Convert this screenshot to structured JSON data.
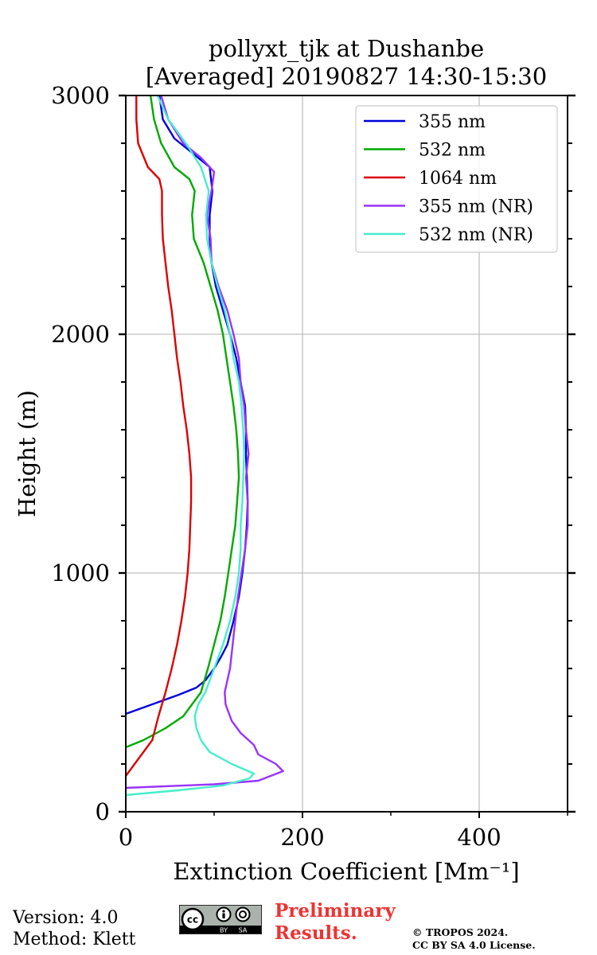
{
  "chart_data": {
    "type": "line",
    "title": "pollyxt_tjk at Dushanbe",
    "subtitle": "[Averaged] 20190827 14:30-15:30",
    "xlabel": "Extinction Coefficient [Mm⁻¹]",
    "ylabel": "Height (m)",
    "xlim": [
      0,
      500
    ],
    "ylim": [
      0,
      3000
    ],
    "xticks": [
      0,
      200,
      400
    ],
    "yticks": [
      0,
      1000,
      2000,
      3000
    ],
    "grid": true,
    "legend_position": "top-right",
    "series": [
      {
        "name": "355 nm",
        "color": "#0000dd",
        "points": [
          [
            0,
            410
          ],
          [
            30,
            450
          ],
          [
            60,
            490
          ],
          [
            80,
            520
          ],
          [
            90,
            550
          ],
          [
            100,
            600
          ],
          [
            108,
            650
          ],
          [
            115,
            700
          ],
          [
            122,
            800
          ],
          [
            128,
            900
          ],
          [
            132,
            1000
          ],
          [
            135,
            1100
          ],
          [
            137,
            1200
          ],
          [
            138,
            1300
          ],
          [
            137,
            1400
          ],
          [
            136,
            1500
          ],
          [
            136,
            1600
          ],
          [
            135,
            1700
          ],
          [
            130,
            1800
          ],
          [
            125,
            1900
          ],
          [
            118,
            2000
          ],
          [
            110,
            2100
          ],
          [
            102,
            2200
          ],
          [
            97,
            2300
          ],
          [
            95,
            2400
          ],
          [
            95,
            2500
          ],
          [
            98,
            2600
          ],
          [
            95,
            2700
          ],
          [
            75,
            2760
          ],
          [
            55,
            2820
          ],
          [
            42,
            2900
          ],
          [
            38,
            3000
          ]
        ]
      },
      {
        "name": "532 nm",
        "color": "#00aa00",
        "points": [
          [
            0,
            270
          ],
          [
            20,
            300
          ],
          [
            45,
            350
          ],
          [
            65,
            400
          ],
          [
            75,
            450
          ],
          [
            85,
            500
          ],
          [
            93,
            600
          ],
          [
            100,
            700
          ],
          [
            107,
            800
          ],
          [
            112,
            900
          ],
          [
            116,
            1000
          ],
          [
            120,
            1100
          ],
          [
            124,
            1200
          ],
          [
            126,
            1300
          ],
          [
            128,
            1400
          ],
          [
            127,
            1500
          ],
          [
            125,
            1600
          ],
          [
            122,
            1700
          ],
          [
            118,
            1800
          ],
          [
            114,
            1900
          ],
          [
            110,
            2000
          ],
          [
            104,
            2100
          ],
          [
            96,
            2200
          ],
          [
            88,
            2300
          ],
          [
            77,
            2400
          ],
          [
            75,
            2500
          ],
          [
            78,
            2600
          ],
          [
            72,
            2650
          ],
          [
            55,
            2700
          ],
          [
            40,
            2800
          ],
          [
            32,
            2900
          ],
          [
            28,
            3000
          ]
        ]
      },
      {
        "name": "1064 nm",
        "color": "#dd0000",
        "points": [
          [
            0,
            150
          ],
          [
            10,
            200
          ],
          [
            20,
            250
          ],
          [
            30,
            300
          ],
          [
            37,
            400
          ],
          [
            45,
            500
          ],
          [
            52,
            600
          ],
          [
            58,
            700
          ],
          [
            63,
            800
          ],
          [
            67,
            900
          ],
          [
            70,
            1000
          ],
          [
            72,
            1100
          ],
          [
            73,
            1200
          ],
          [
            74,
            1300
          ],
          [
            74,
            1400
          ],
          [
            72,
            1500
          ],
          [
            69,
            1600
          ],
          [
            65,
            1700
          ],
          [
            62,
            1800
          ],
          [
            58,
            1900
          ],
          [
            55,
            2000
          ],
          [
            52,
            2100
          ],
          [
            48,
            2200
          ],
          [
            45,
            2300
          ],
          [
            42,
            2400
          ],
          [
            41,
            2500
          ],
          [
            41,
            2600
          ],
          [
            38,
            2650
          ],
          [
            25,
            2700
          ],
          [
            14,
            2800
          ],
          [
            12,
            2900
          ],
          [
            12,
            3000
          ]
        ]
      },
      {
        "name": "355 nm (NR)",
        "color": "#9933ff",
        "points": [
          [
            0,
            100
          ],
          [
            100,
            115
          ],
          [
            150,
            130
          ],
          [
            178,
            170
          ],
          [
            170,
            200
          ],
          [
            150,
            240
          ],
          [
            145,
            280
          ],
          [
            130,
            330
          ],
          [
            120,
            380
          ],
          [
            113,
            450
          ],
          [
            112,
            500
          ],
          [
            115,
            550
          ],
          [
            118,
            600
          ],
          [
            121,
            700
          ],
          [
            124,
            800
          ],
          [
            127,
            900
          ],
          [
            131,
            1000
          ],
          [
            135,
            1100
          ],
          [
            138,
            1200
          ],
          [
            138,
            1300
          ],
          [
            136,
            1400
          ],
          [
            139,
            1500
          ],
          [
            136,
            1600
          ],
          [
            134,
            1700
          ],
          [
            130,
            1800
          ],
          [
            128,
            1900
          ],
          [
            122,
            2000
          ],
          [
            115,
            2100
          ],
          [
            105,
            2200
          ],
          [
            97,
            2300
          ],
          [
            96,
            2400
          ],
          [
            92,
            2500
          ],
          [
            97,
            2600
          ],
          [
            100,
            2680
          ],
          [
            85,
            2740
          ],
          [
            65,
            2800
          ],
          [
            48,
            2900
          ],
          [
            40,
            3000
          ]
        ]
      },
      {
        "name": "532 nm (NR)",
        "color": "#44eecc",
        "points": [
          [
            0,
            70
          ],
          [
            60,
            90
          ],
          [
            110,
            110
          ],
          [
            140,
            140
          ],
          [
            145,
            160
          ],
          [
            120,
            200
          ],
          [
            95,
            250
          ],
          [
            85,
            300
          ],
          [
            80,
            350
          ],
          [
            78,
            400
          ],
          [
            82,
            450
          ],
          [
            90,
            500
          ],
          [
            100,
            600
          ],
          [
            110,
            700
          ],
          [
            118,
            800
          ],
          [
            124,
            900
          ],
          [
            128,
            1000
          ],
          [
            130,
            1100
          ],
          [
            130,
            1200
          ],
          [
            132,
            1300
          ],
          [
            133,
            1400
          ],
          [
            134,
            1500
          ],
          [
            133,
            1600
          ],
          [
            131,
            1700
          ],
          [
            128,
            1800
          ],
          [
            122,
            1900
          ],
          [
            118,
            2000
          ],
          [
            112,
            2100
          ],
          [
            104,
            2200
          ],
          [
            97,
            2300
          ],
          [
            92,
            2400
          ],
          [
            91,
            2500
          ],
          [
            94,
            2600
          ],
          [
            85,
            2700
          ],
          [
            68,
            2800
          ],
          [
            48,
            2900
          ],
          [
            36,
            3000
          ]
        ]
      }
    ]
  },
  "footer": {
    "version": "Version: 4.0",
    "method": "Method: Klett",
    "prelim_line1": "Preliminary",
    "prelim_line2": "Results.",
    "copyright_line1": "© TROPOS 2024.",
    "copyright_line2": "CC BY SA 4.0 License.",
    "badge_labels": [
      "BY",
      "SA"
    ]
  }
}
